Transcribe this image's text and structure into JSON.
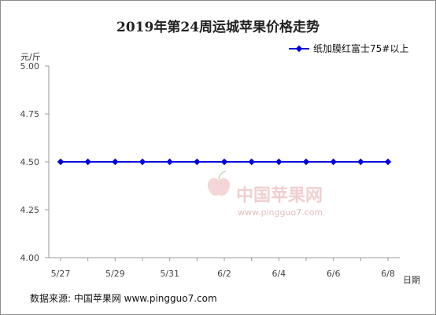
{
  "chart_data": {
    "type": "line",
    "title": "2019年第24周运城苹果价格走势",
    "ylabel": "元/斤",
    "xlabel": "日期",
    "ylim": [
      4.0,
      5.0
    ],
    "yticks": [
      "5.00",
      "4.75",
      "4.50",
      "4.25",
      "4.00"
    ],
    "x_tick_labels": [
      "5/27",
      "5/29",
      "5/31",
      "6/2",
      "6/4",
      "6/6",
      "6/8"
    ],
    "x": [
      "5/27",
      "5/28",
      "5/29",
      "5/30",
      "5/31",
      "6/1",
      "6/2",
      "6/3",
      "6/4",
      "6/5",
      "6/6",
      "6/7",
      "6/8"
    ],
    "series": [
      {
        "name": "纸加膜红富士75#以上",
        "values": [
          4.5,
          4.5,
          4.5,
          4.5,
          4.5,
          4.5,
          4.5,
          4.5,
          4.5,
          4.5,
          4.5,
          4.5,
          4.5
        ],
        "color": "#0000d8"
      }
    ],
    "grid": false,
    "legend": "top-right"
  },
  "watermark": {
    "brand": "中国苹果网",
    "url": "www.pingguo7.com"
  },
  "footer": {
    "source": "数据来源: 中国苹果网 www.pingguo7.com"
  },
  "colors": {
    "series": "#0000d8",
    "axis": "#999999",
    "watermark": "#f1cfcf"
  }
}
